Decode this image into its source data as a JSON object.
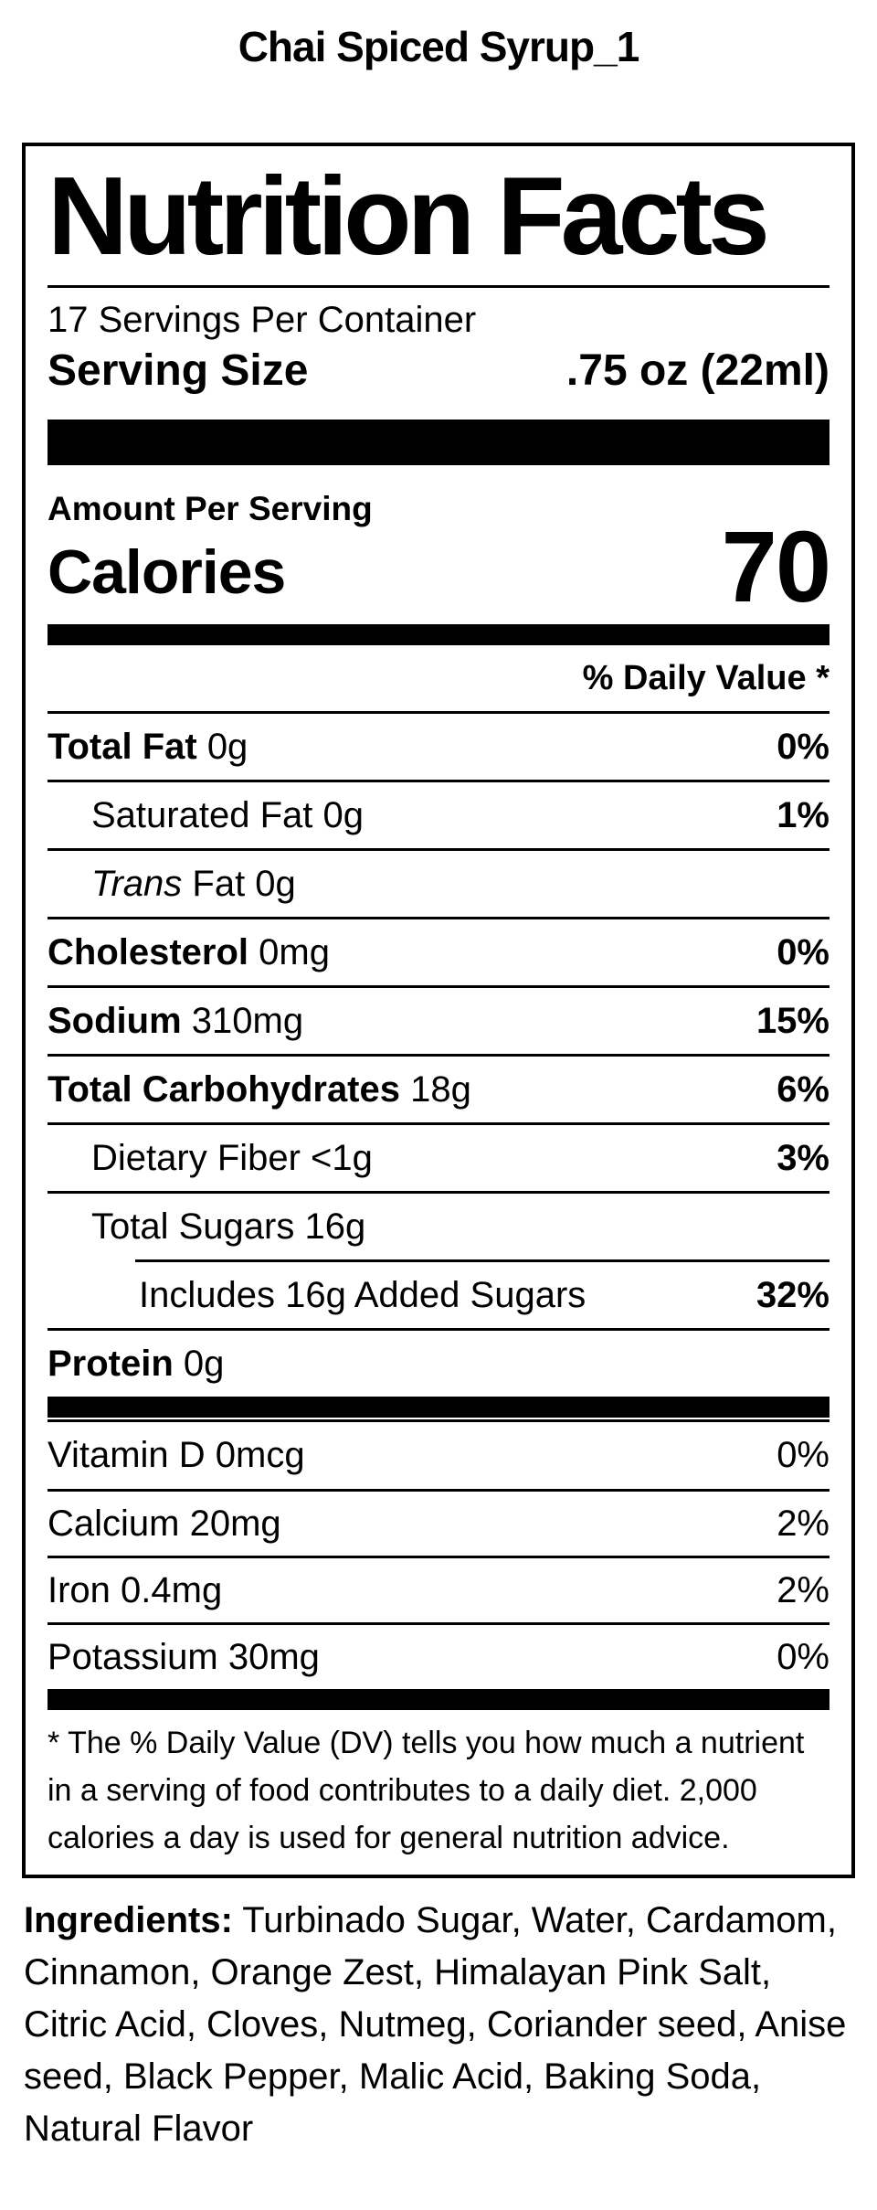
{
  "page": {
    "title": "Chai Spiced Syrup_1"
  },
  "label": {
    "title": "Nutrition Facts",
    "servings_per_container": "17 Servings Per Container",
    "serving_size_label": "Serving Size",
    "serving_size_value": ".75 oz (22ml)",
    "amount_per_serving": "Amount Per Serving",
    "calories_label": "Calories",
    "calories_value": "70",
    "daily_value_header": "% Daily Value *",
    "nutrients": [
      {
        "b": "Total Fat ",
        "i": "",
        "t": "0g",
        "dv": "0%"
      },
      {
        "b": "",
        "i": "",
        "t": "Saturated Fat 0g",
        "dv": "1%"
      },
      {
        "b": "",
        "i": "Trans ",
        "t": "Fat 0g",
        "dv": ""
      },
      {
        "b": "Cholesterol ",
        "i": "",
        "t": "0mg",
        "dv": "0%"
      },
      {
        "b": "Sodium ",
        "i": "",
        "t": "310mg",
        "dv": "15%"
      },
      {
        "b": "Total Carbohydrates ",
        "i": "",
        "t": "18g",
        "dv": "6%"
      },
      {
        "b": "",
        "i": "",
        "t": "Dietary Fiber <1g",
        "dv": "3%"
      },
      {
        "b": "",
        "i": "",
        "t": "Total Sugars 16g",
        "dv": ""
      },
      {
        "b": "",
        "i": "",
        "t": "Includes 16g Added Sugars",
        "dv": "32%"
      },
      {
        "b": "Protein ",
        "i": "",
        "t": "0g",
        "dv": ""
      }
    ],
    "vitamins": [
      {
        "t": "Vitamin D 0mcg",
        "dv": "0%"
      },
      {
        "t": "Calcium 20mg",
        "dv": "2%"
      },
      {
        "t": "Iron 0.4mg",
        "dv": "2%"
      },
      {
        "t": "Potassium 30mg",
        "dv": "0%"
      }
    ],
    "footnote": "* The % Daily Value (DV) tells you how much a nutrient in a serving of food contributes to a daily diet. 2,000 calories a day is used for general nutrition advice."
  },
  "ingredients": {
    "label": "Ingredients:",
    "text": " Turbinado Sugar, Water, Cardamom, Cinnamon, Orange Zest, Himalayan Pink Salt, Citric Acid, Cloves, Nutmeg, Coriander seed, Anise seed, Black Pepper, Malic Acid, Baking Soda, Natural Flavor"
  },
  "colors": {
    "ink": "#000000",
    "background": "#ffffff"
  }
}
